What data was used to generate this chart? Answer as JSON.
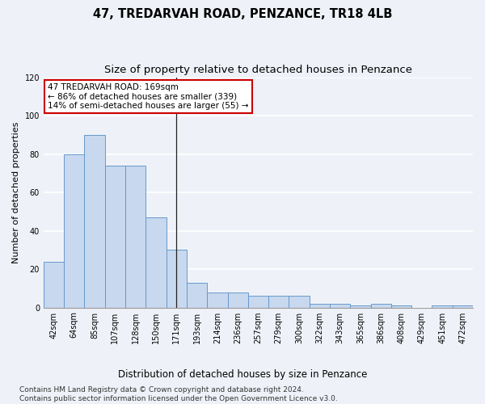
{
  "title": "47, TREDARVAH ROAD, PENZANCE, TR18 4LB",
  "subtitle": "Size of property relative to detached houses in Penzance",
  "xlabel": "Distribution of detached houses by size in Penzance",
  "ylabel": "Number of detached properties",
  "bar_labels": [
    "42sqm",
    "64sqm",
    "85sqm",
    "107sqm",
    "128sqm",
    "150sqm",
    "171sqm",
    "193sqm",
    "214sqm",
    "236sqm",
    "257sqm",
    "279sqm",
    "300sqm",
    "322sqm",
    "343sqm",
    "365sqm",
    "386sqm",
    "408sqm",
    "429sqm",
    "451sqm",
    "472sqm"
  ],
  "bar_heights": [
    24,
    80,
    90,
    74,
    74,
    47,
    30,
    13,
    8,
    8,
    6,
    6,
    6,
    2,
    2,
    1,
    2,
    1,
    0,
    1,
    1
  ],
  "bar_color": "#c8d8ee",
  "bar_edge_color": "#6699cc",
  "ylim": [
    0,
    120
  ],
  "yticks": [
    0,
    20,
    40,
    60,
    80,
    100,
    120
  ],
  "vline_bar_index": 6,
  "annotation_text": "47 TREDARVAH ROAD: 169sqm\n← 86% of detached houses are smaller (339)\n14% of semi-detached houses are larger (55) →",
  "annotation_box_facecolor": "#ffffff",
  "annotation_box_edgecolor": "#cc0000",
  "footer_line1": "Contains HM Land Registry data © Crown copyright and database right 2024.",
  "footer_line2": "Contains public sector information licensed under the Open Government Licence v3.0.",
  "background_color": "#eef2f8",
  "grid_color": "#ffffff",
  "title_fontsize": 10.5,
  "subtitle_fontsize": 9.5,
  "ylabel_fontsize": 8,
  "xlabel_fontsize": 8.5,
  "tick_fontsize": 7,
  "annot_fontsize": 7.5,
  "footer_fontsize": 6.5
}
